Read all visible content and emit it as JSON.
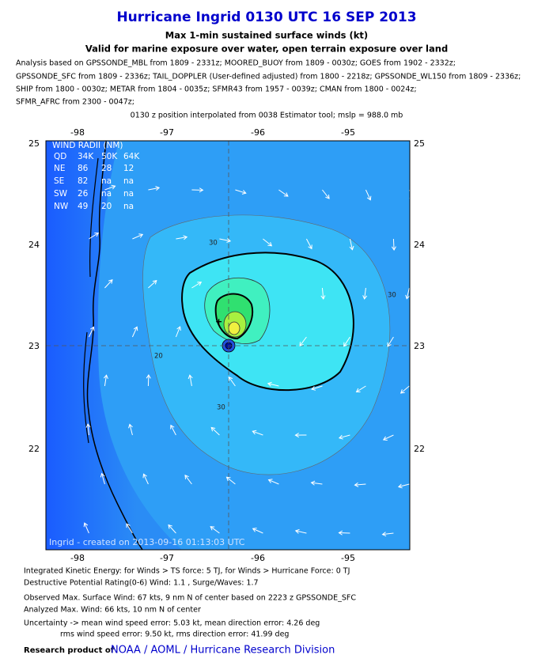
{
  "header": {
    "title": "Hurricane Ingrid 0130 UTC 16 SEP 2013",
    "subtitle": "Max 1-min sustained surface winds (kt)",
    "subtitle2": "Valid for marine exposure over water, open terrain exposure over land"
  },
  "analysis": [
    "Analysis based on GPSSONDE_MBL from 1809 - 2331z; MOORED_BUOY from 1809 - 0030z; GOES from 1902 - 2332z;",
    "GPSSONDE_SFC from 1809 - 2336z; TAIL_DOPPLER (User-defined adjusted) from 1800 - 2218z; GPSSONDE_WL150 from 1809 - 2336z;",
    "SHIP from 1800 - 0030z; METAR from 1804 - 0035z; SFMR43 from 1957 - 0039z; CMAN from 1800 - 0024z;",
    "SFMR_AFRC from 2300 - 0047z;"
  ],
  "position_note": "0130 z position interpolated from 0038 Estimator tool; mslp = 988.0 mb",
  "map": {
    "lon_labels": [
      "-98",
      "-97",
      "-96",
      "-95"
    ],
    "lat_labels": [
      "25",
      "24",
      "23",
      "22"
    ],
    "contour_labels": [
      "30",
      "30",
      "20",
      "30"
    ],
    "wind_radii": {
      "title": "WIND RADII (NM)",
      "header": [
        "QD",
        "34K",
        "50K",
        "64K"
      ],
      "rows": [
        [
          "NE",
          "86",
          "28",
          "12"
        ],
        [
          "SE",
          "82",
          "na",
          "na"
        ],
        [
          "SW",
          "26",
          "na",
          "na"
        ],
        [
          "NW",
          "49",
          "20",
          "na"
        ]
      ]
    },
    "credit": "Ingrid - created on 2013-09-16 01:13:03 UTC"
  },
  "footer": {
    "lines": [
      "Integrated Kinetic Energy: for Winds > TS force: 5 TJ, for Winds > Hurricane Force: 0 TJ",
      "Destructive Potential Rating(0-6)  Wind: 1.1 , Surge/Waves: 1.7",
      "Observed Max. Surface Wind: 67 kts, 9 nm N of center based on 2223 z GPSSONDE_SFC",
      "Analyzed Max. Wind: 66 kts, 10 nm  N of center",
      "Uncertainty -> mean wind speed error: 5.03 kt, mean direction error: 4.26 deg",
      "rms wind speed error: 9.50 kt, rms direction error: 41.99 deg"
    ],
    "research": "Research product of",
    "link": "NOAA / AOML / Hurricane Research Division"
  }
}
